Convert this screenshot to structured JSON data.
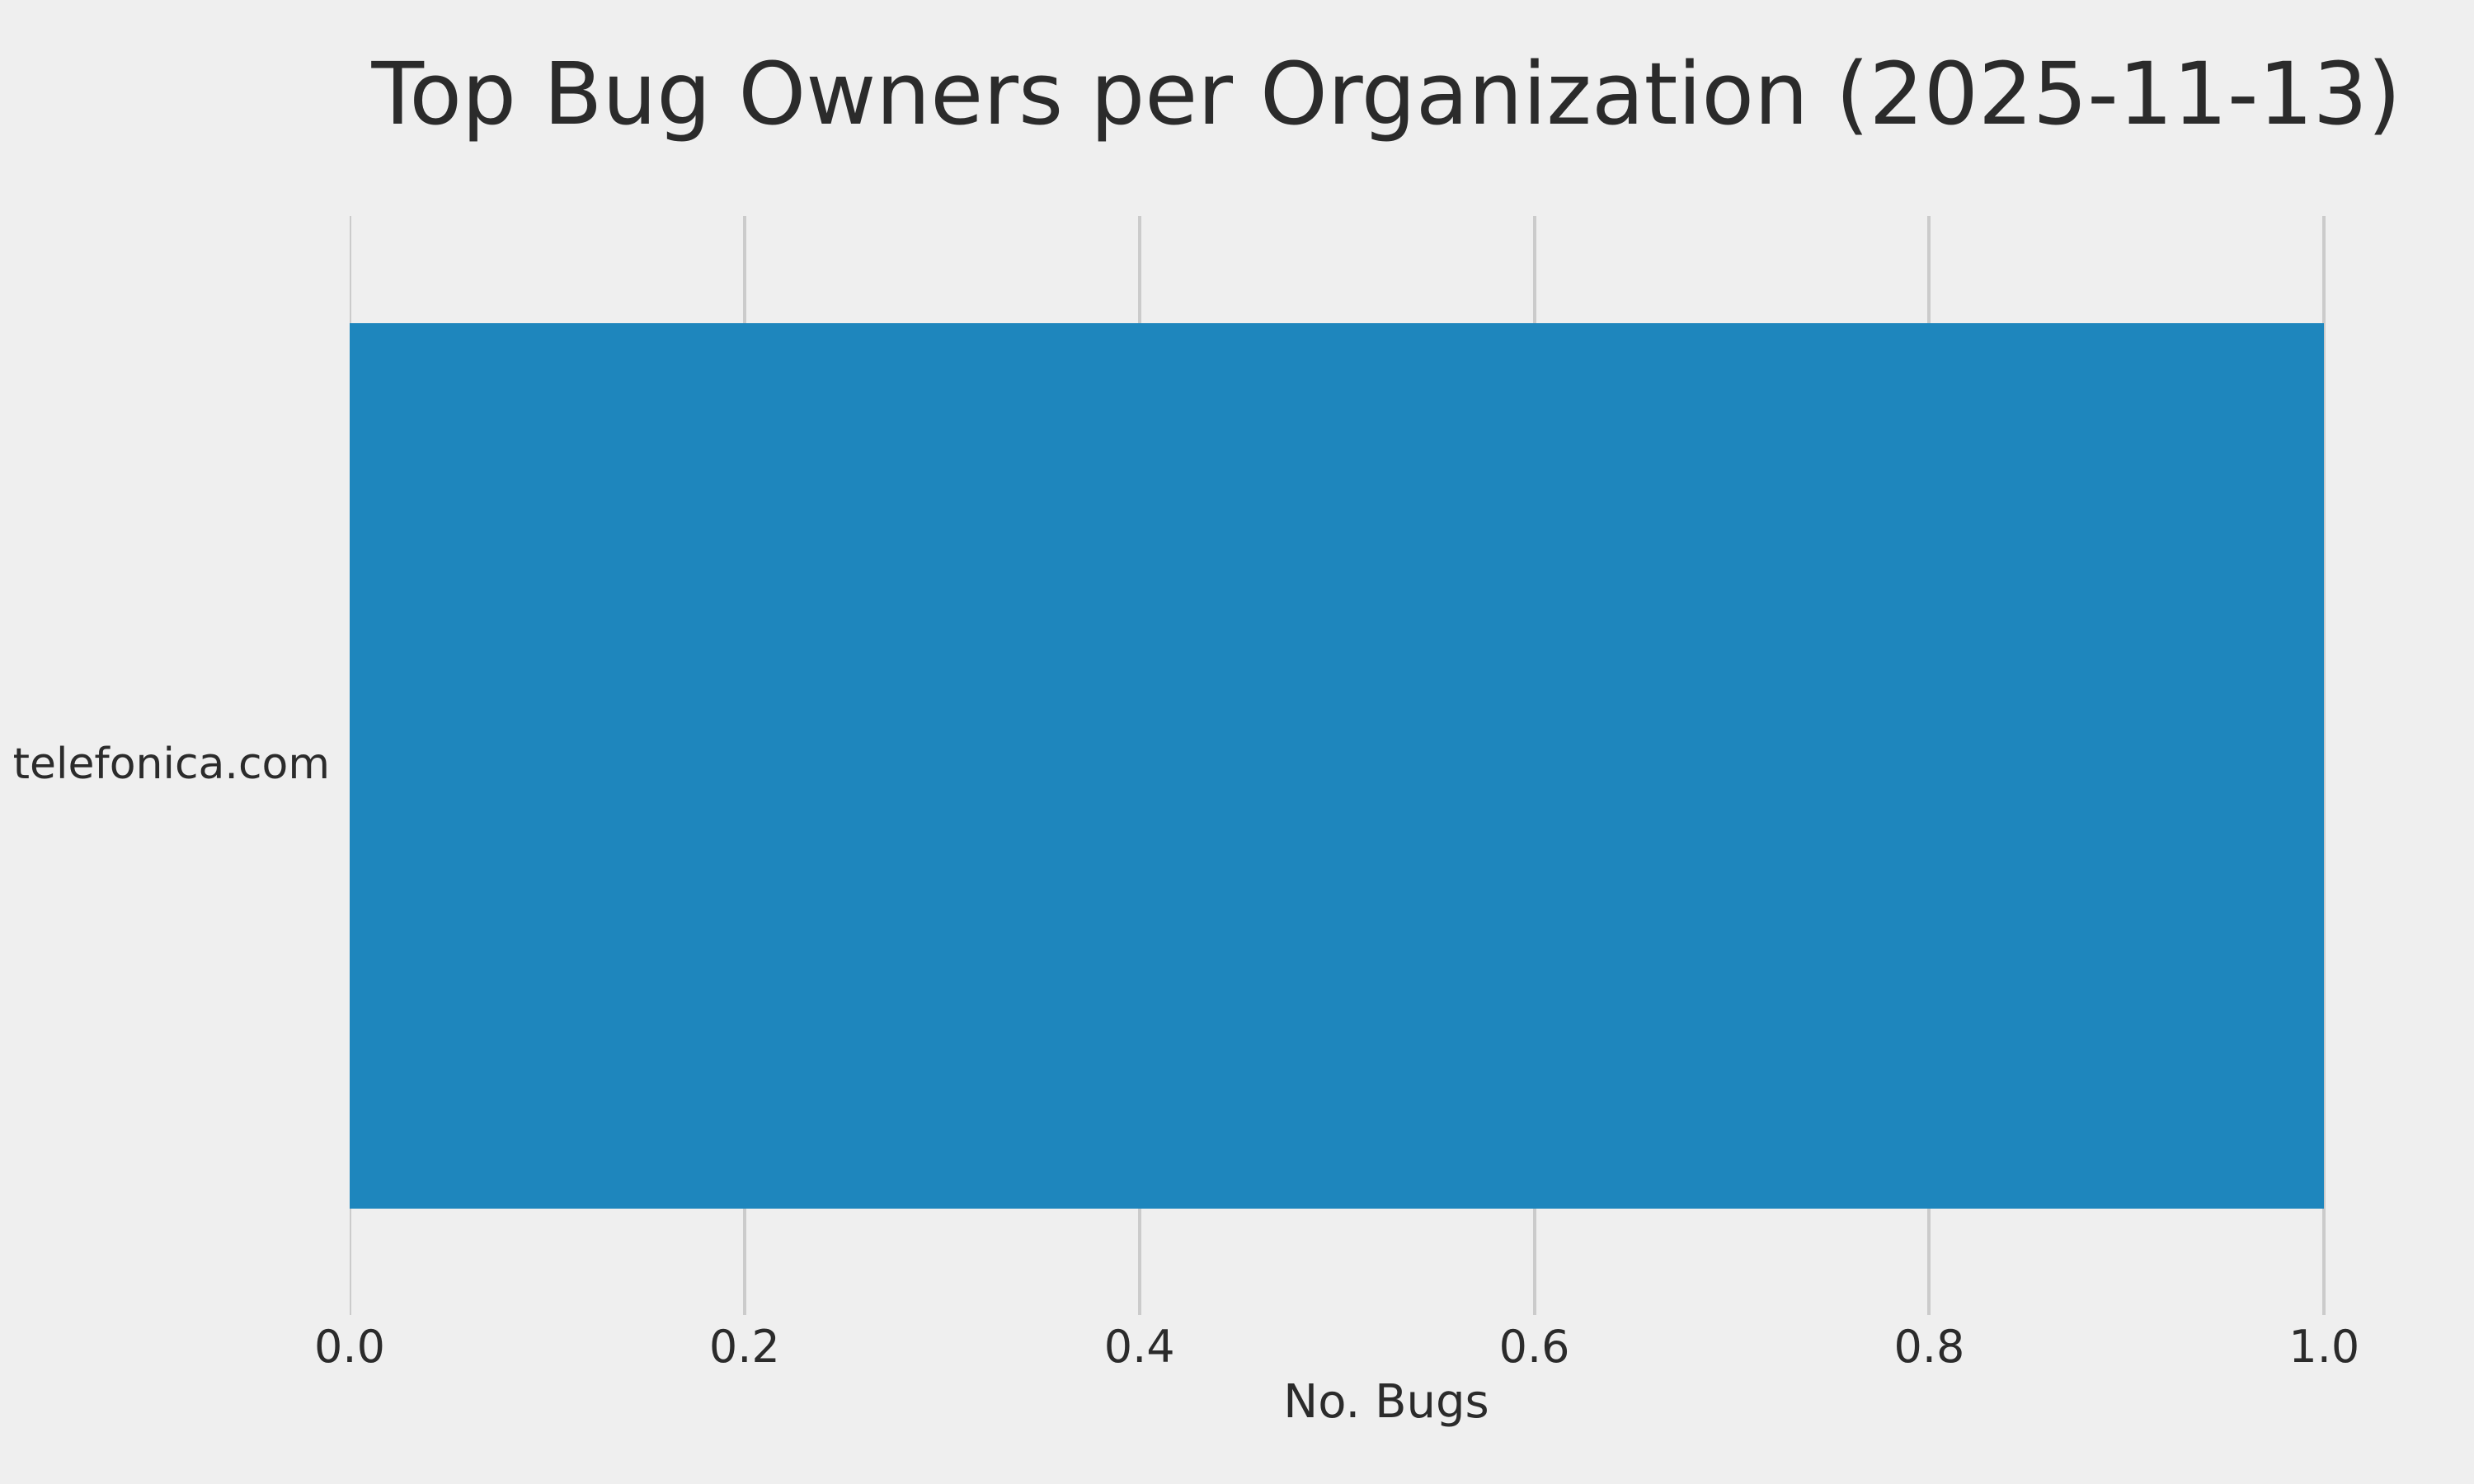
{
  "page": {
    "background_color": "#efefef",
    "text_color": "#2b2b2b"
  },
  "chart_data": {
    "type": "bar",
    "orientation": "horizontal",
    "title": "Top Bug Owners per Organization (2025-11-13)",
    "xlabel": "No. Bugs",
    "ylabel": "",
    "categories": [
      "telefonica.com"
    ],
    "values": [
      1.0
    ],
    "xticks": [
      0.0,
      0.2,
      0.4,
      0.6,
      0.8,
      1.0
    ],
    "xtick_labels": [
      "0.0",
      "0.2",
      "0.4",
      "0.6",
      "0.8",
      "1.0"
    ],
    "xlim": [
      0,
      1.05
    ],
    "grid": "vertical-gridlines-on",
    "legend": "none",
    "bar_color": "#1e86bd",
    "grid_color": "#cbcbcb",
    "bar_fraction_of_row": 0.806
  }
}
